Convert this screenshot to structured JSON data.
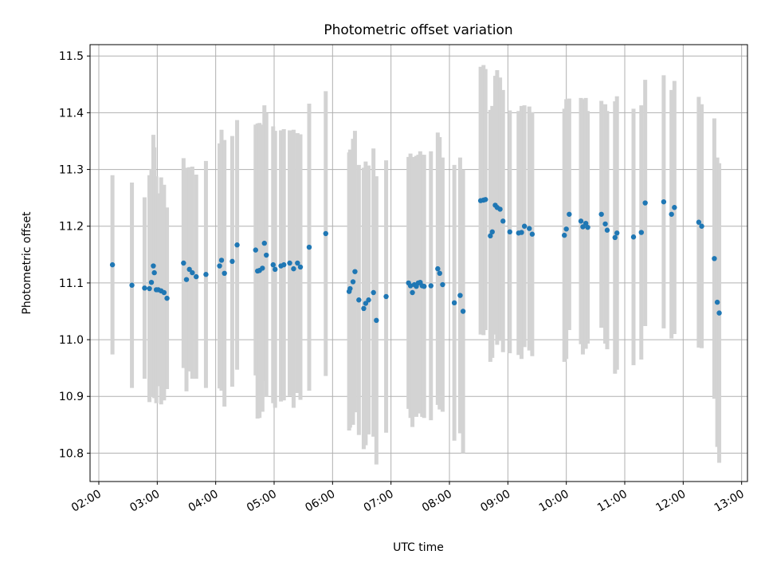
{
  "chart_data": {
    "type": "scatter",
    "title": "Photometric offset variation",
    "xlabel": "UTC time",
    "ylabel": "Photometric offset",
    "xlim": [
      "01:51",
      "13:06"
    ],
    "ylim": [
      10.75,
      11.52
    ],
    "xticks": [
      "02:00",
      "03:00",
      "04:00",
      "05:00",
      "06:00",
      "07:00",
      "08:00",
      "09:00",
      "10:00",
      "11:00",
      "12:00",
      "13:00"
    ],
    "yticks": [
      "10.8",
      "10.9",
      "11.0",
      "11.1",
      "11.2",
      "11.3",
      "11.4",
      "11.5"
    ],
    "grid": true,
    "marker_color": "#1f77b4",
    "errorbar_color": "#d3d3d3",
    "series": [
      {
        "x": [
          "02:14",
          "02:34",
          "02:47",
          "02:52",
          "02:54",
          "02:56",
          "02:57",
          "02:59",
          "03:01",
          "03:04",
          "03:07",
          "03:10",
          "03:27",
          "03:30",
          "03:33",
          "03:36",
          "03:40",
          "03:50",
          "04:04",
          "04:06",
          "04:09",
          "04:17",
          "04:22",
          "04:41",
          "04:43",
          "04:45",
          "04:48",
          "04:50",
          "04:52",
          "04:59",
          "05:01",
          "05:07",
          "05:10",
          "05:16",
          "05:20",
          "05:24",
          "05:27",
          "05:36",
          "05:53",
          "06:17",
          "06:18",
          "06:21",
          "06:23",
          "06:27",
          "06:32",
          "06:34",
          "06:37",
          "06:42",
          "06:45",
          "06:55",
          "07:18",
          "07:20",
          "07:22",
          "07:24",
          "07:26",
          "07:28",
          "07:30",
          "07:32",
          "07:34",
          "07:41",
          "07:48",
          "07:50",
          "07:53",
          "08:05",
          "08:11",
          "08:14",
          "08:32",
          "08:35",
          "08:37",
          "08:42",
          "08:44",
          "08:47",
          "08:49",
          "08:52",
          "08:55",
          "09:02",
          "09:11",
          "09:14",
          "09:17",
          "09:22",
          "09:25",
          "09:58",
          "10:00",
          "10:03",
          "10:15",
          "10:17",
          "10:20",
          "10:22",
          "10:36",
          "10:40",
          "10:42",
          "10:50",
          "10:52",
          "11:09",
          "11:17",
          "11:21",
          "11:40",
          "11:48",
          "11:51",
          "12:16",
          "12:19",
          "12:32",
          "12:35",
          "12:37"
        ],
        "y": [
          11.132,
          11.096,
          11.091,
          11.09,
          11.101,
          11.13,
          11.118,
          11.088,
          11.088,
          11.086,
          11.083,
          11.073,
          11.135,
          11.106,
          11.124,
          11.118,
          11.111,
          11.115,
          11.13,
          11.14,
          11.117,
          11.138,
          11.167,
          11.158,
          11.121,
          11.122,
          11.126,
          11.17,
          11.149,
          11.132,
          11.124,
          11.13,
          11.132,
          11.135,
          11.125,
          11.135,
          11.128,
          11.163,
          11.187,
          11.085,
          11.09,
          11.102,
          11.12,
          11.07,
          11.055,
          11.064,
          11.07,
          11.083,
          11.034,
          11.076,
          11.1,
          11.095,
          11.083,
          11.097,
          11.094,
          11.1,
          11.101,
          11.095,
          11.094,
          11.095,
          11.125,
          11.117,
          11.097,
          11.065,
          11.078,
          11.05,
          11.245,
          11.246,
          11.247,
          11.183,
          11.19,
          11.237,
          11.233,
          11.23,
          11.209,
          11.19,
          11.188,
          11.189,
          11.2,
          11.196,
          11.186,
          11.184,
          11.195,
          11.221,
          11.209,
          11.199,
          11.205,
          11.198,
          11.221,
          11.204,
          11.193,
          11.18,
          11.188,
          11.181,
          11.189,
          11.241,
          11.243,
          11.221,
          11.233,
          11.207,
          11.2,
          11.143,
          11.066,
          11.047
        ],
        "yerr": [
          0.158,
          0.181,
          0.16,
          0.2,
          0.2,
          0.231,
          0.221,
          0.2,
          0.17,
          0.2,
          0.19,
          0.16,
          0.185,
          0.197,
          0.18,
          0.187,
          0.18,
          0.2,
          0.216,
          0.23,
          0.235,
          0.221,
          0.22,
          0.221,
          0.26,
          0.26,
          0.253,
          0.243,
          0.25,
          0.244,
          0.244,
          0.239,
          0.239,
          0.234,
          0.245,
          0.229,
          0.234,
          0.253,
          0.251,
          0.245,
          0.245,
          0.252,
          0.248,
          0.238,
          0.248,
          0.25,
          0.237,
          0.254,
          0.254,
          0.24,
          0.222,
          0.233,
          0.237,
          0.225,
          0.23,
          0.226,
          0.231,
          0.231,
          0.232,
          0.237,
          0.24,
          0.24,
          0.224,
          0.243,
          0.243,
          0.25,
          0.236,
          0.238,
          0.23,
          0.222,
          0.222,
          0.228,
          0.242,
          0.232,
          0.231,
          0.214,
          0.215,
          0.223,
          0.213,
          0.215,
          0.215,
          0.223,
          0.229,
          0.204,
          0.217,
          0.225,
          0.221,
          0.205,
          0.2,
          0.211,
          0.21,
          0.24,
          0.241,
          0.226,
          0.224,
          0.217,
          0.223,
          0.219,
          0.223,
          0.221,
          0.215,
          0.247,
          0.255,
          0.264
        ]
      }
    ]
  }
}
